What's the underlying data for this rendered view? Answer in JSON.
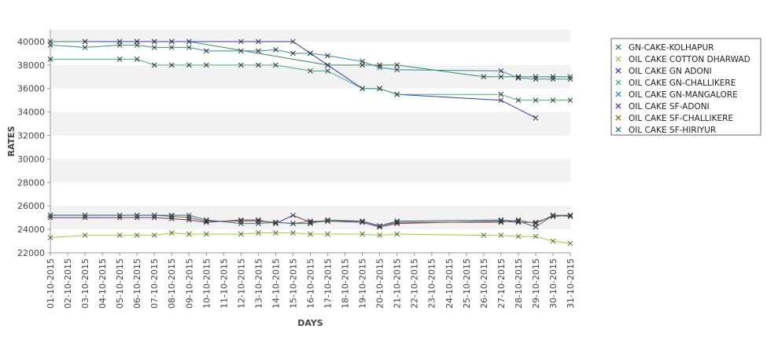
{
  "chart_data": {
    "type": "line",
    "xlabel": "DAYS",
    "ylabel": "RATES",
    "ylim": [
      22000,
      41000
    ],
    "yticks": [
      22000,
      24000,
      26000,
      28000,
      30000,
      32000,
      34000,
      36000,
      38000,
      40000
    ],
    "grid": "horizontal alternating bands",
    "legend": "right",
    "categories": [
      "01-10-2015",
      "02-10-2015",
      "03-10-2015",
      "04-10-2015",
      "05-10-2015",
      "06-10-2015",
      "07-10-2015",
      "08-10-2015",
      "09-10-2015",
      "10-10-2015",
      "11-10-2015",
      "12-10-2015",
      "13-10-2015",
      "14-10-2015",
      "15-10-2015",
      "16-10-2015",
      "17-10-2015",
      "18-10-2015",
      "19-10-2015",
      "20-10-2015",
      "21-10-2015",
      "22-10-2015",
      "23-10-2015",
      "24-10-2015",
      "25-10-2015",
      "26-10-2015",
      "27-10-2015",
      "28-10-2015",
      "29-10-2015",
      "30-10-2015",
      "31-10-2015"
    ],
    "series": [
      {
        "name": "GN-CAKE-KOLHAPUR",
        "color": "#2e8b57",
        "points": [
          [
            "01-10-2015",
            40000
          ],
          [
            "03-10-2015",
            40000
          ],
          [
            "05-10-2015",
            40000
          ],
          [
            "06-10-2015",
            40000
          ],
          [
            "07-10-2015",
            40000
          ],
          [
            "08-10-2015",
            40000
          ],
          [
            "09-10-2015",
            40000
          ],
          [
            "17-10-2015",
            38000
          ],
          [
            "19-10-2015",
            38000
          ],
          [
            "20-10-2015",
            38000
          ],
          [
            "21-10-2015",
            38000
          ],
          [
            "26-10-2015",
            37000
          ],
          [
            "27-10-2015",
            37000
          ],
          [
            "28-10-2015",
            37000
          ],
          [
            "29-10-2015",
            37000
          ],
          [
            "30-10-2015",
            37000
          ],
          [
            "31-10-2015",
            37000
          ]
        ]
      },
      {
        "name": "OIL CAKE COTTON DHARWAD",
        "color": "#9acd32",
        "points": [
          [
            "01-10-2015",
            23300
          ],
          [
            "03-10-2015",
            23500
          ],
          [
            "05-10-2015",
            23500
          ],
          [
            "06-10-2015",
            23500
          ],
          [
            "07-10-2015",
            23500
          ],
          [
            "08-10-2015",
            23700
          ],
          [
            "09-10-2015",
            23600
          ],
          [
            "10-10-2015",
            23600
          ],
          [
            "12-10-2015",
            23600
          ],
          [
            "13-10-2015",
            23700
          ],
          [
            "14-10-2015",
            23700
          ],
          [
            "15-10-2015",
            23700
          ],
          [
            "16-10-2015",
            23600
          ],
          [
            "17-10-2015",
            23600
          ],
          [
            "19-10-2015",
            23600
          ],
          [
            "20-10-2015",
            23500
          ],
          [
            "21-10-2015",
            23600
          ],
          [
            "26-10-2015",
            23500
          ],
          [
            "27-10-2015",
            23500
          ],
          [
            "28-10-2015",
            23400
          ],
          [
            "29-10-2015",
            23400
          ],
          [
            "30-10-2015",
            23000
          ],
          [
            "31-10-2015",
            22800
          ]
        ]
      },
      {
        "name": "OIL CAKE GN ADONI",
        "color": "#3333cc",
        "points": [
          [
            "03-10-2015",
            40000
          ],
          [
            "05-10-2015",
            40000
          ],
          [
            "06-10-2015",
            40000
          ],
          [
            "07-10-2015",
            40000
          ],
          [
            "08-10-2015",
            40000
          ],
          [
            "09-10-2015",
            40000
          ],
          [
            "12-10-2015",
            40000
          ],
          [
            "13-10-2015",
            40000
          ],
          [
            "15-10-2015",
            40000
          ],
          [
            "16-10-2015",
            39000
          ],
          [
            "17-10-2015",
            38000
          ],
          [
            "19-10-2015",
            36000
          ],
          [
            "20-10-2015",
            36000
          ],
          [
            "21-10-2015",
            35500
          ],
          [
            "27-10-2015",
            35000
          ],
          [
            "29-10-2015",
            33500
          ]
        ]
      },
      {
        "name": "OIL CAKE GN-CHALLIKERE",
        "color": "#3cb371",
        "points": [
          [
            "01-10-2015",
            38500
          ],
          [
            "05-10-2015",
            38500
          ],
          [
            "06-10-2015",
            38500
          ],
          [
            "07-10-2015",
            38000
          ],
          [
            "08-10-2015",
            38000
          ],
          [
            "09-10-2015",
            38000
          ],
          [
            "10-10-2015",
            38000
          ],
          [
            "12-10-2015",
            38000
          ],
          [
            "13-10-2015",
            38000
          ],
          [
            "14-10-2015",
            38000
          ],
          [
            "16-10-2015",
            37500
          ],
          [
            "17-10-2015",
            37500
          ],
          [
            "19-10-2015",
            36000
          ],
          [
            "20-10-2015",
            36000
          ],
          [
            "21-10-2015",
            35500
          ],
          [
            "27-10-2015",
            35500
          ],
          [
            "28-10-2015",
            35000
          ],
          [
            "29-10-2015",
            35000
          ],
          [
            "30-10-2015",
            35000
          ],
          [
            "31-10-2015",
            35000
          ]
        ]
      },
      {
        "name": "OIL CAKE GN-MANGALORE",
        "color": "#2f8fa0",
        "points": [
          [
            "01-10-2015",
            39700
          ],
          [
            "03-10-2015",
            39500
          ],
          [
            "05-10-2015",
            39700
          ],
          [
            "06-10-2015",
            39700
          ],
          [
            "07-10-2015",
            39500
          ],
          [
            "08-10-2015",
            39500
          ],
          [
            "09-10-2015",
            39500
          ],
          [
            "10-10-2015",
            39200
          ],
          [
            "12-10-2015",
            39200
          ],
          [
            "13-10-2015",
            39200
          ],
          [
            "14-10-2015",
            39300
          ],
          [
            "15-10-2015",
            39000
          ],
          [
            "16-10-2015",
            39000
          ],
          [
            "17-10-2015",
            38800
          ],
          [
            "19-10-2015",
            38300
          ],
          [
            "20-10-2015",
            37800
          ],
          [
            "21-10-2015",
            37600
          ],
          [
            "27-10-2015",
            37500
          ],
          [
            "28-10-2015",
            36900
          ],
          [
            "29-10-2015",
            36800
          ],
          [
            "30-10-2015",
            36800
          ],
          [
            "31-10-2015",
            36800
          ]
        ]
      },
      {
        "name": "OIL CAKE SF-ADONI",
        "color": "#6a2a8a",
        "points": [
          [
            "01-10-2015",
            25000
          ],
          [
            "03-10-2015",
            25000
          ],
          [
            "05-10-2015",
            25000
          ],
          [
            "06-10-2015",
            25000
          ],
          [
            "07-10-2015",
            25000
          ],
          [
            "08-10-2015",
            24900
          ],
          [
            "09-10-2015",
            24800
          ],
          [
            "10-10-2015",
            24600
          ],
          [
            "12-10-2015",
            24800
          ],
          [
            "13-10-2015",
            24800
          ],
          [
            "14-10-2015",
            24500
          ],
          [
            "15-10-2015",
            25200
          ],
          [
            "16-10-2015",
            24600
          ],
          [
            "17-10-2015",
            24700
          ],
          [
            "19-10-2015",
            24600
          ],
          [
            "20-10-2015",
            24200
          ],
          [
            "21-10-2015",
            24500
          ],
          [
            "27-10-2015",
            24700
          ],
          [
            "28-10-2015",
            24600
          ],
          [
            "29-10-2015",
            24600
          ],
          [
            "30-10-2015",
            25100
          ],
          [
            "31-10-2015",
            25200
          ]
        ]
      },
      {
        "name": "OIL CAKE SF-CHALLIKERE",
        "color": "#8b6914",
        "points": [
          [
            "01-10-2015",
            25200
          ],
          [
            "03-10-2015",
            25200
          ],
          [
            "05-10-2015",
            25200
          ],
          [
            "06-10-2015",
            25200
          ],
          [
            "07-10-2015",
            25200
          ],
          [
            "08-10-2015",
            25100
          ],
          [
            "09-10-2015",
            25000
          ],
          [
            "10-10-2015",
            24700
          ],
          [
            "12-10-2015",
            24700
          ],
          [
            "13-10-2015",
            24700
          ],
          [
            "14-10-2015",
            24600
          ],
          [
            "15-10-2015",
            24500
          ],
          [
            "16-10-2015",
            24700
          ],
          [
            "17-10-2015",
            24700
          ],
          [
            "19-10-2015",
            24700
          ],
          [
            "20-10-2015",
            24300
          ],
          [
            "21-10-2015",
            24600
          ],
          [
            "27-10-2015",
            24600
          ],
          [
            "28-10-2015",
            24800
          ],
          [
            "29-10-2015",
            24500
          ],
          [
            "30-10-2015",
            25200
          ],
          [
            "31-10-2015",
            25100
          ]
        ]
      },
      {
        "name": "OIL CAKE SF-HIRIYUR",
        "color": "#2f6f8f",
        "points": [
          [
            "01-10-2015",
            25200
          ],
          [
            "03-10-2015",
            25200
          ],
          [
            "05-10-2015",
            25200
          ],
          [
            "06-10-2015",
            25200
          ],
          [
            "07-10-2015",
            25200
          ],
          [
            "08-10-2015",
            25200
          ],
          [
            "09-10-2015",
            25200
          ],
          [
            "10-10-2015",
            24800
          ],
          [
            "12-10-2015",
            24500
          ],
          [
            "13-10-2015",
            24500
          ],
          [
            "14-10-2015",
            24600
          ],
          [
            "15-10-2015",
            24500
          ],
          [
            "16-10-2015",
            24500
          ],
          [
            "17-10-2015",
            24800
          ],
          [
            "19-10-2015",
            24700
          ],
          [
            "20-10-2015",
            24300
          ],
          [
            "21-10-2015",
            24700
          ],
          [
            "27-10-2015",
            24800
          ],
          [
            "28-10-2015",
            24700
          ],
          [
            "29-10-2015",
            24200
          ],
          [
            "30-10-2015",
            25200
          ],
          [
            "31-10-2015",
            25200
          ]
        ]
      }
    ]
  }
}
